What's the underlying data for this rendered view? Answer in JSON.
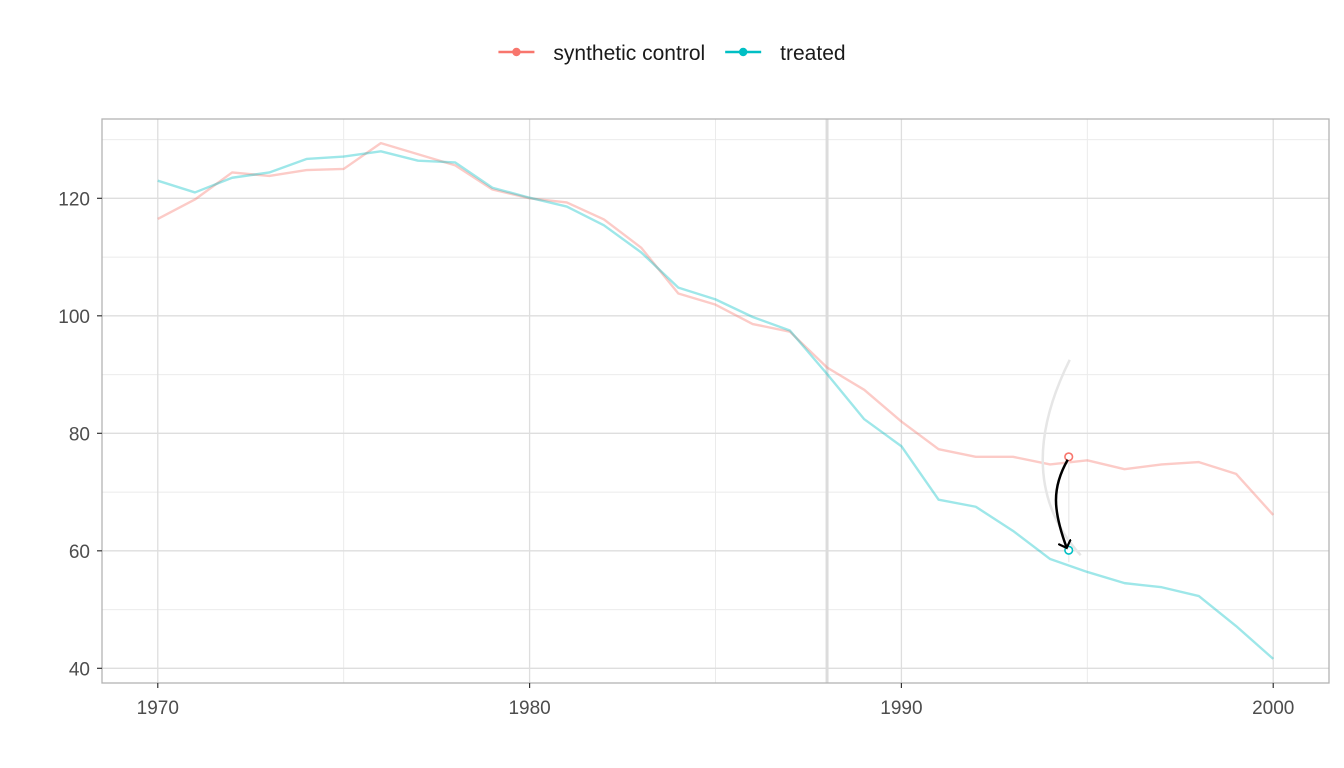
{
  "chart_data": {
    "type": "line",
    "title": "",
    "xlabel": "",
    "ylabel": "",
    "xlim": [
      1968.5,
      2001.5
    ],
    "ylim": [
      37.5,
      133.5
    ],
    "x_ticks": [
      1970,
      1980,
      1990,
      2000
    ],
    "y_ticks": [
      40,
      60,
      80,
      100,
      120
    ],
    "grid": true,
    "legend_position": "top",
    "treatment_year": 1988,
    "x": [
      1970,
      1971,
      1972,
      1973,
      1974,
      1975,
      1976,
      1977,
      1978,
      1979,
      1980,
      1981,
      1982,
      1983,
      1984,
      1985,
      1986,
      1987,
      1988,
      1989,
      1990,
      1991,
      1992,
      1993,
      1994,
      1995,
      1996,
      1997,
      1998,
      1999,
      2000
    ],
    "series": [
      {
        "name": "synthetic control",
        "color": "#F8766D",
        "values": [
          116.5,
          119.8,
          124.4,
          123.8,
          124.8,
          125.0,
          129.4,
          127.5,
          125.6,
          121.5,
          120.0,
          119.3,
          116.4,
          111.6,
          103.8,
          101.9,
          98.6,
          97.3,
          91.2,
          87.4,
          82.0,
          77.3,
          76.0,
          76.0,
          74.7,
          75.4,
          73.9,
          74.7,
          75.1,
          73.1,
          66.1
        ],
        "highlight": {
          "x": 1994.5,
          "y": 76.0
        }
      },
      {
        "name": "treated",
        "color": "#00BFC4",
        "values": [
          123.0,
          121.0,
          123.5,
          124.4,
          126.7,
          127.1,
          128.0,
          126.4,
          126.1,
          121.8,
          120.1,
          118.6,
          115.4,
          110.8,
          104.8,
          102.8,
          99.8,
          97.5,
          90.1,
          82.4,
          77.8,
          68.7,
          67.5,
          63.4,
          58.6,
          56.4,
          54.5,
          53.8,
          52.3,
          47.2,
          41.6
        ],
        "highlight": {
          "x": 1994.5,
          "y": 60.1
        }
      }
    ],
    "annotation": {
      "type": "arrow",
      "from": {
        "x": 1994.5,
        "y": 75.5
      },
      "to": {
        "x": 1994.5,
        "y": 60.5
      }
    }
  }
}
